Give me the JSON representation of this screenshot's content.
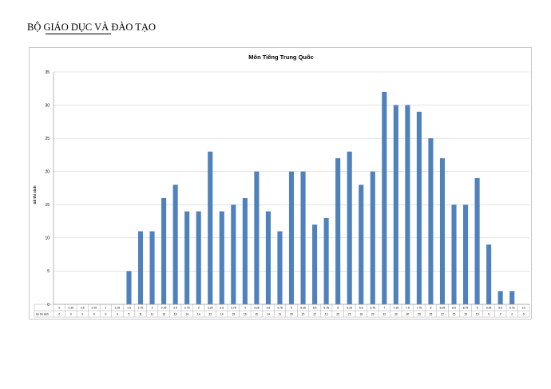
{
  "document": {
    "header": "BỘ GIÁO DỤC VÀ ĐÀO TẠO"
  },
  "chart_data": {
    "type": "bar",
    "title": "Môn Tiếng Trung Quốc",
    "xlabel": "",
    "ylabel": "Số thí sinh",
    "ylim": [
      0,
      35
    ],
    "yticks": [
      0,
      5,
      10,
      15,
      20,
      25,
      30,
      35
    ],
    "grid": true,
    "legend": "none",
    "color": "#4f81bd",
    "categories": [
      "0",
      "0.25",
      "0.5",
      "0.75",
      "1",
      "1.25",
      "1.5",
      "1.75",
      "2",
      "2.25",
      "2.5",
      "2.75",
      "3",
      "3.25",
      "3.5",
      "3.75",
      "4",
      "4.25",
      "4.5",
      "4.75",
      "5",
      "5.25",
      "5.5",
      "5.75",
      "6",
      "6.25",
      "6.5",
      "6.75",
      "7",
      "7.25",
      "7.5",
      "7.75",
      "8",
      "8.25",
      "8.5",
      "8.75",
      "9",
      "9.25",
      "9.5",
      "9.75",
      "10"
    ],
    "table_row_label": "Số thí sinh",
    "values": [
      0,
      0,
      0,
      0,
      0,
      0,
      5,
      11,
      11,
      16,
      18,
      14,
      14,
      23,
      14,
      15,
      16,
      20,
      14,
      11,
      20,
      20,
      12,
      13,
      22,
      23,
      18,
      20,
      32,
      30,
      30,
      29,
      25,
      22,
      15,
      15,
      19,
      9,
      2,
      2,
      0
    ]
  }
}
